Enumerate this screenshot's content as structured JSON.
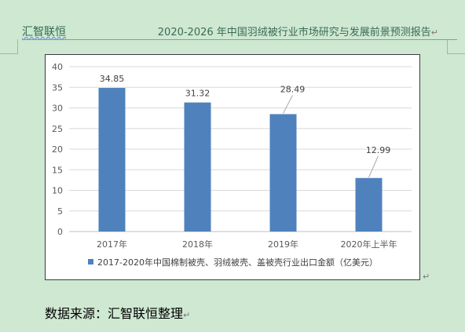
{
  "header": {
    "left": "汇智联恒",
    "right": "2020-2026 年中国羽绒被行业市场研究与发展前景预测报告",
    "return_mark": "↵"
  },
  "chart_data": {
    "type": "bar",
    "categories": [
      "2017年",
      "2018年",
      "2019年",
      "2020年上半年"
    ],
    "series": [
      {
        "name": "2017-2020年中国棉制被壳、羽绒被壳、盖被壳行业出口金额（亿美元）",
        "values": [
          34.85,
          31.32,
          28.49,
          12.99
        ]
      }
    ],
    "data_labels": [
      "34.85",
      "31.32",
      "28.49",
      "12.99"
    ],
    "yticks": [
      "0",
      "5",
      "10",
      "15",
      "20",
      "25",
      "30",
      "35",
      "40"
    ],
    "ylim": [
      0,
      40
    ],
    "grid": true,
    "legend_position": "bottom",
    "colors": {
      "bar": "#4f81bd",
      "grid": "#d9d9d9",
      "label_line": "#a6a6a6"
    }
  },
  "source": {
    "text": "数据来源：汇智联恒整理",
    "return_mark": "↵"
  },
  "para_mark": "↵"
}
